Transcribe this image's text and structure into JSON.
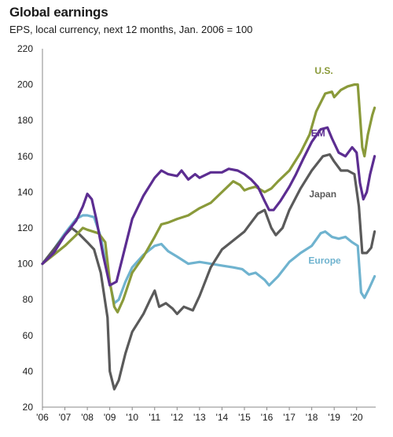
{
  "chart_data": {
    "type": "line",
    "title": "Global earnings",
    "subtitle": "EPS, local currency, next 12 months, Jan. 2006 = 100",
    "xlabel": "",
    "ylabel": "",
    "x_tick_labels": [
      "'06",
      "'07",
      "'08",
      "'09",
      "'10",
      "'11",
      "'12",
      "'13",
      "'14",
      "'15",
      "'16",
      "'17",
      "'18",
      "'19",
      "'20"
    ],
    "x_ticks": [
      2006,
      2007,
      2008,
      2009,
      2010,
      2011,
      2012,
      2013,
      2014,
      2015,
      2016,
      2017,
      2018,
      2019,
      2020
    ],
    "xlim": [
      2006,
      2020.85
    ],
    "ylim": [
      20,
      220
    ],
    "y_ticks": [
      20,
      40,
      60,
      80,
      100,
      120,
      140,
      160,
      180,
      200,
      220
    ],
    "grid": false,
    "series": [
      {
        "name": "U.S.",
        "color": "#8a9a3a",
        "points": [
          [
            2006,
            100
          ],
          [
            2006.5,
            105
          ],
          [
            2007,
            110
          ],
          [
            2007.5,
            116
          ],
          [
            2007.8,
            120
          ],
          [
            2008,
            119
          ],
          [
            2008.5,
            117
          ],
          [
            2008.8,
            112
          ],
          [
            2009,
            90
          ],
          [
            2009.2,
            76
          ],
          [
            2009.35,
            73
          ],
          [
            2009.6,
            80
          ],
          [
            2010,
            95
          ],
          [
            2010.5,
            104
          ],
          [
            2011,
            115
          ],
          [
            2011.3,
            122
          ],
          [
            2011.6,
            123
          ],
          [
            2012,
            125
          ],
          [
            2012.5,
            127
          ],
          [
            2013,
            131
          ],
          [
            2013.5,
            134
          ],
          [
            2014,
            140
          ],
          [
            2014.5,
            146
          ],
          [
            2014.8,
            144
          ],
          [
            2015,
            141
          ],
          [
            2015.2,
            142
          ],
          [
            2015.5,
            143
          ],
          [
            2015.9,
            140
          ],
          [
            2016.2,
            142
          ],
          [
            2016.5,
            146
          ],
          [
            2017,
            152
          ],
          [
            2017.5,
            162
          ],
          [
            2017.9,
            172
          ],
          [
            2018.2,
            185
          ],
          [
            2018.6,
            195
          ],
          [
            2018.9,
            196
          ],
          [
            2019,
            193
          ],
          [
            2019.3,
            197
          ],
          [
            2019.6,
            199
          ],
          [
            2019.9,
            200
          ],
          [
            2020.05,
            200
          ],
          [
            2020.25,
            165
          ],
          [
            2020.35,
            160
          ],
          [
            2020.5,
            172
          ],
          [
            2020.7,
            183
          ],
          [
            2020.8,
            187
          ]
        ]
      },
      {
        "name": "EM",
        "color": "#5c2d91",
        "points": [
          [
            2006,
            100
          ],
          [
            2006.5,
            106
          ],
          [
            2007,
            116
          ],
          [
            2007.5,
            124
          ],
          [
            2007.8,
            132
          ],
          [
            2008,
            139
          ],
          [
            2008.2,
            136
          ],
          [
            2008.4,
            125
          ],
          [
            2008.7,
            105
          ],
          [
            2009,
            88
          ],
          [
            2009.3,
            90
          ],
          [
            2009.6,
            105
          ],
          [
            2010,
            125
          ],
          [
            2010.5,
            138
          ],
          [
            2011,
            148
          ],
          [
            2011.3,
            152
          ],
          [
            2011.6,
            150
          ],
          [
            2012,
            149
          ],
          [
            2012.2,
            152
          ],
          [
            2012.5,
            147
          ],
          [
            2012.8,
            150
          ],
          [
            2013,
            148
          ],
          [
            2013.5,
            151
          ],
          [
            2014,
            151
          ],
          [
            2014.3,
            153
          ],
          [
            2014.7,
            152
          ],
          [
            2015,
            150
          ],
          [
            2015.3,
            147
          ],
          [
            2015.6,
            143
          ],
          [
            2015.9,
            135
          ],
          [
            2016.1,
            130
          ],
          [
            2016.3,
            130
          ],
          [
            2016.6,
            135
          ],
          [
            2017,
            143
          ],
          [
            2017.3,
            150
          ],
          [
            2017.6,
            158
          ],
          [
            2018,
            168
          ],
          [
            2018.4,
            175
          ],
          [
            2018.7,
            176
          ],
          [
            2018.9,
            170
          ],
          [
            2019.2,
            162
          ],
          [
            2019.5,
            160
          ],
          [
            2019.8,
            165
          ],
          [
            2020,
            162
          ],
          [
            2020.15,
            145
          ],
          [
            2020.3,
            136
          ],
          [
            2020.45,
            140
          ],
          [
            2020.6,
            150
          ],
          [
            2020.8,
            160
          ]
        ]
      },
      {
        "name": "Japan",
        "color": "#5a5a5a",
        "points": [
          [
            2006,
            100
          ],
          [
            2006.5,
            108
          ],
          [
            2007,
            116
          ],
          [
            2007.3,
            120
          ],
          [
            2007.6,
            117
          ],
          [
            2008,
            112
          ],
          [
            2008.3,
            108
          ],
          [
            2008.6,
            95
          ],
          [
            2008.9,
            70
          ],
          [
            2009,
            40
          ],
          [
            2009.2,
            30
          ],
          [
            2009.4,
            35
          ],
          [
            2009.7,
            50
          ],
          [
            2010,
            62
          ],
          [
            2010.5,
            72
          ],
          [
            2010.8,
            80
          ],
          [
            2011,
            85
          ],
          [
            2011.2,
            76
          ],
          [
            2011.5,
            78
          ],
          [
            2011.8,
            75
          ],
          [
            2012,
            72
          ],
          [
            2012.3,
            76
          ],
          [
            2012.7,
            74
          ],
          [
            2013,
            82
          ],
          [
            2013.5,
            98
          ],
          [
            2014,
            108
          ],
          [
            2014.5,
            113
          ],
          [
            2015,
            118
          ],
          [
            2015.3,
            123
          ],
          [
            2015.6,
            128
          ],
          [
            2015.9,
            130
          ],
          [
            2016.2,
            120
          ],
          [
            2016.4,
            116
          ],
          [
            2016.7,
            120
          ],
          [
            2017,
            130
          ],
          [
            2017.5,
            142
          ],
          [
            2018,
            152
          ],
          [
            2018.5,
            160
          ],
          [
            2018.8,
            161
          ],
          [
            2019,
            157
          ],
          [
            2019.3,
            152
          ],
          [
            2019.6,
            152
          ],
          [
            2019.9,
            150
          ],
          [
            2020.1,
            132
          ],
          [
            2020.25,
            106
          ],
          [
            2020.45,
            106
          ],
          [
            2020.65,
            109
          ],
          [
            2020.8,
            118
          ]
        ]
      },
      {
        "name": "Europe",
        "color": "#6fb3cf",
        "points": [
          [
            2006,
            100
          ],
          [
            2006.5,
            108
          ],
          [
            2007,
            117
          ],
          [
            2007.5,
            125
          ],
          [
            2007.8,
            127
          ],
          [
            2008,
            127
          ],
          [
            2008.3,
            126
          ],
          [
            2008.6,
            115
          ],
          [
            2008.9,
            95
          ],
          [
            2009.2,
            78
          ],
          [
            2009.4,
            80
          ],
          [
            2009.7,
            90
          ],
          [
            2010,
            98
          ],
          [
            2010.5,
            105
          ],
          [
            2011,
            110
          ],
          [
            2011.3,
            111
          ],
          [
            2011.6,
            107
          ],
          [
            2012,
            104
          ],
          [
            2012.5,
            100
          ],
          [
            2013,
            101
          ],
          [
            2013.5,
            100
          ],
          [
            2014,
            99
          ],
          [
            2014.5,
            98
          ],
          [
            2014.9,
            97
          ],
          [
            2015.2,
            94
          ],
          [
            2015.5,
            95
          ],
          [
            2015.9,
            91
          ],
          [
            2016.1,
            88
          ],
          [
            2016.5,
            93
          ],
          [
            2017,
            101
          ],
          [
            2017.5,
            106
          ],
          [
            2018,
            110
          ],
          [
            2018.4,
            117
          ],
          [
            2018.6,
            118
          ],
          [
            2018.9,
            115
          ],
          [
            2019.2,
            114
          ],
          [
            2019.5,
            115
          ],
          [
            2019.8,
            112
          ],
          [
            2020.05,
            110
          ],
          [
            2020.2,
            84
          ],
          [
            2020.35,
            81
          ],
          [
            2020.55,
            86
          ],
          [
            2020.8,
            93
          ]
        ]
      }
    ]
  }
}
